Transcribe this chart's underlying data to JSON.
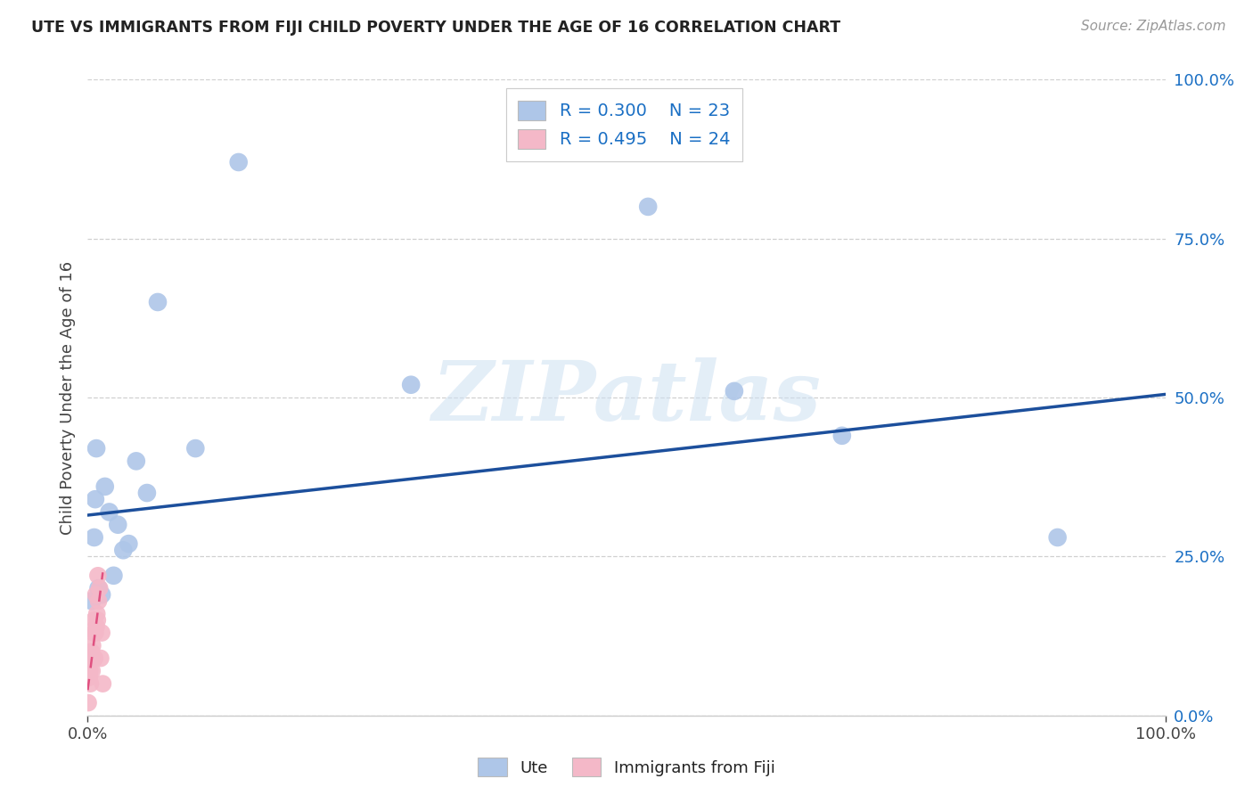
{
  "title": "UTE VS IMMIGRANTS FROM FIJI CHILD POVERTY UNDER THE AGE OF 16 CORRELATION CHART",
  "source": "Source: ZipAtlas.com",
  "ylabel": "Child Poverty Under the Age of 16",
  "watermark": "ZIPatlas",
  "legend_ute_R": "R = 0.300",
  "legend_ute_N": "N = 23",
  "legend_fiji_R": "R = 0.495",
  "legend_fiji_N": "N = 24",
  "ute_color": "#aec6e8",
  "ute_line_color": "#1c4f9c",
  "fiji_color": "#f4b8c8",
  "fiji_line_color": "#e05080",
  "ute_scatter_x": [
    0.003,
    0.004,
    0.006,
    0.007,
    0.008,
    0.01,
    0.013,
    0.016,
    0.02,
    0.024,
    0.028,
    0.033,
    0.038,
    0.045,
    0.055,
    0.065,
    0.1,
    0.14,
    0.3,
    0.52,
    0.7,
    0.9,
    0.6
  ],
  "ute_scatter_y": [
    0.09,
    0.18,
    0.28,
    0.34,
    0.42,
    0.2,
    0.19,
    0.36,
    0.32,
    0.22,
    0.3,
    0.26,
    0.27,
    0.4,
    0.35,
    0.65,
    0.42,
    0.87,
    0.52,
    0.8,
    0.44,
    0.28,
    0.51
  ],
  "fiji_scatter_x": [
    0.0005,
    0.001,
    0.0015,
    0.002,
    0.0025,
    0.003,
    0.0035,
    0.004,
    0.0045,
    0.005,
    0.0055,
    0.006,
    0.0065,
    0.007,
    0.0075,
    0.008,
    0.0085,
    0.009,
    0.0095,
    0.01,
    0.011,
    0.012,
    0.013,
    0.014
  ],
  "fiji_scatter_y": [
    0.02,
    0.06,
    0.06,
    0.07,
    0.05,
    0.1,
    0.1,
    0.07,
    0.11,
    0.09,
    0.13,
    0.15,
    0.09,
    0.13,
    0.19,
    0.14,
    0.16,
    0.15,
    0.22,
    0.18,
    0.2,
    0.09,
    0.13,
    0.05
  ],
  "ute_trend_x": [
    0.0,
    1.0
  ],
  "ute_trend_y": [
    0.315,
    0.505
  ],
  "fiji_trend_x": [
    0.0,
    0.014
  ],
  "fiji_trend_y": [
    0.04,
    0.225
  ],
  "xlim": [
    0.0,
    1.0
  ],
  "ylim": [
    0.0,
    1.0
  ],
  "yticks": [
    0.0,
    0.25,
    0.5,
    0.75,
    1.0
  ],
  "ytick_labels": [
    "0.0%",
    "25.0%",
    "50.0%",
    "75.0%",
    "100.0%"
  ],
  "xtick_positions": [
    0.0,
    1.0
  ],
  "xtick_labels": [
    "0.0%",
    "100.0%"
  ]
}
